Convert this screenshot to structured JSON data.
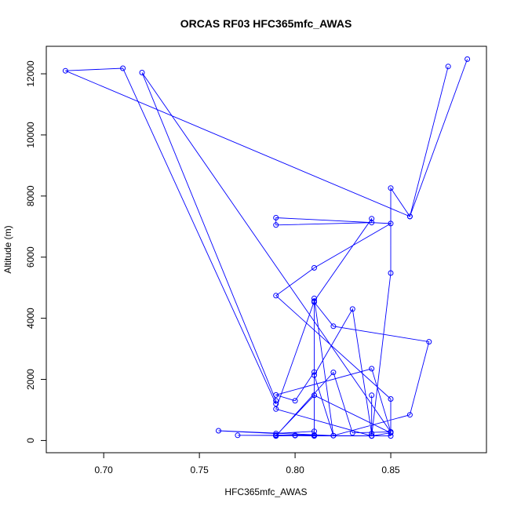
{
  "chart_data": {
    "type": "line",
    "title": "ORCAS RF03 HFC365mfc_AWAS",
    "xlabel": "HFC365mfc_AWAS",
    "ylabel": "Altitude (m)",
    "xlim": [
      0.67,
      0.9
    ],
    "ylim": [
      -400,
      12900
    ],
    "x_ticks": [
      0.7,
      0.75,
      0.8,
      0.85
    ],
    "x_tick_labels": [
      "0.70",
      "0.75",
      "0.80",
      "0.85"
    ],
    "y_ticks": [
      0,
      2000,
      4000,
      6000,
      8000,
      10000,
      12000
    ],
    "y_tick_labels": [
      "0",
      "2000",
      "4000",
      "6000",
      "8000",
      "10000",
      "12000"
    ],
    "grid": false,
    "markers": "open-circle",
    "series_color": "#0000ff",
    "series": [
      {
        "x": [
          0.89,
          0.86,
          0.85,
          0.85,
          0.84,
          0.84,
          0.84,
          0.79,
          0.81,
          0.84,
          0.84,
          0.79,
          0.79,
          0.85,
          0.81,
          0.79,
          0.85,
          0.85,
          0.84,
          0.79,
          0.8,
          0.81,
          0.81,
          0.82,
          0.87,
          0.86,
          0.82,
          0.81,
          0.81,
          0.81,
          0.79,
          0.76,
          0.82,
          0.81,
          0.83,
          0.84,
          0.84,
          0.85,
          0.77,
          0.81,
          0.81,
          0.81,
          0.8,
          0.79,
          0.79,
          0.8,
          0.81,
          0.84,
          0.85,
          0.81,
          0.79,
          0.79,
          0.82,
          0.83,
          0.85,
          0.72,
          0.79,
          0.79,
          0.71,
          0.68,
          0.86,
          0.88
        ],
        "y": [
          12480,
          7330,
          8260,
          5480,
          150,
          1480,
          150,
          1030,
          4560,
          7260,
          7130,
          7050,
          7290,
          7100,
          5650,
          4740,
          1360,
          280,
          2350,
          1490,
          1300,
          2240,
          4530,
          3740,
          3230,
          840,
          160,
          4650,
          4550,
          300,
          230,
          320,
          160,
          2140,
          4300,
          230,
          150,
          150,
          170,
          180,
          1480,
          160,
          170,
          180,
          150,
          160,
          150,
          150,
          250,
          1480,
          160,
          150,
          2230,
          250,
          280,
          12040,
          1300,
          1200,
          12180,
          12100,
          7330,
          12240
        ]
      }
    ]
  }
}
